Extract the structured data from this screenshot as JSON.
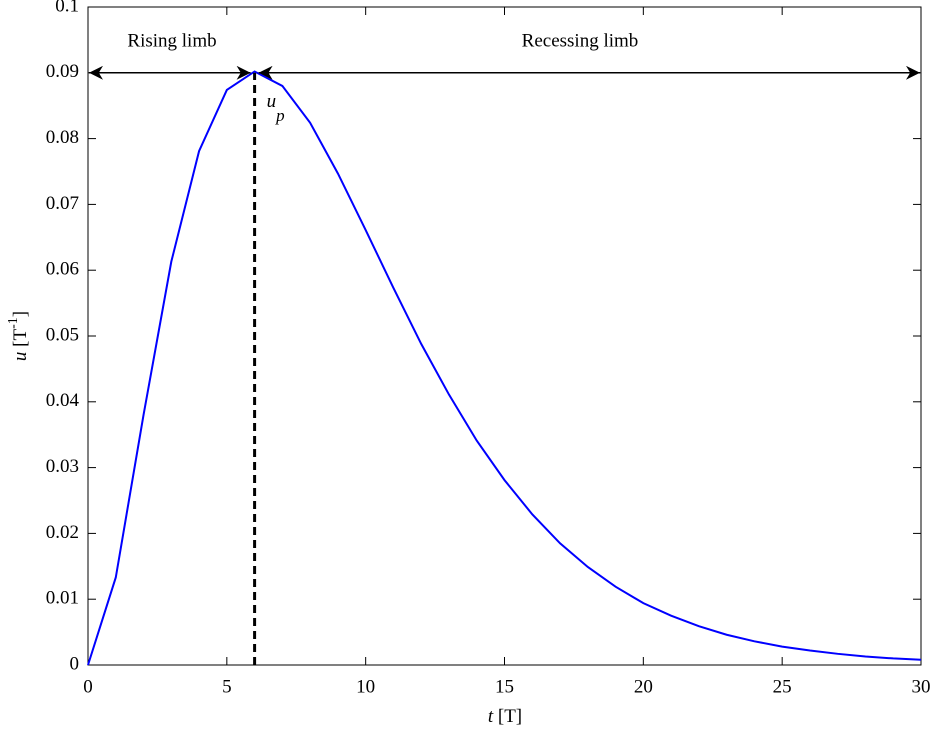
{
  "chart_data": {
    "type": "line",
    "xlabel": {
      "symbol": "t",
      "unit": "[T]"
    },
    "ylabel": {
      "symbol": "u",
      "unit_open": "[T",
      "unit_exp": "-1",
      "unit_close": "]"
    },
    "annotations": {
      "rising": "Rising limb",
      "recessing": "Recessing limb"
    },
    "peak": {
      "x": 6,
      "y": 0.09,
      "symbol": "u",
      "subscript": "p"
    },
    "x": [
      0,
      1,
      2,
      3,
      4,
      5,
      6,
      7,
      8,
      9,
      10,
      11,
      12,
      13,
      14,
      15,
      16,
      17,
      18,
      19,
      20,
      21,
      22,
      23,
      24,
      25,
      26,
      27,
      28,
      29,
      30
    ],
    "series": [
      {
        "color": "#0000ff",
        "values": [
          0,
          0.0133,
          0.038,
          0.0613,
          0.0781,
          0.0874,
          0.0902,
          0.088,
          0.0824,
          0.0747,
          0.0661,
          0.0573,
          0.0488,
          0.0411,
          0.0341,
          0.0281,
          0.0229,
          0.0185,
          0.0149,
          0.0119,
          0.0094,
          0.0075,
          0.0059,
          0.0046,
          0.0036,
          0.0028,
          0.0022,
          0.0017,
          0.0013,
          0.001,
          0.0008
        ]
      }
    ],
    "xlim": [
      0,
      30
    ],
    "ylim": [
      0,
      0.1
    ],
    "xticks": [
      0,
      5,
      10,
      15,
      20,
      25,
      30
    ],
    "yticks": [
      0,
      0.01,
      0.02,
      0.03,
      0.04,
      0.05,
      0.06,
      0.07,
      0.08,
      0.09,
      0.1
    ],
    "grid": false
  }
}
